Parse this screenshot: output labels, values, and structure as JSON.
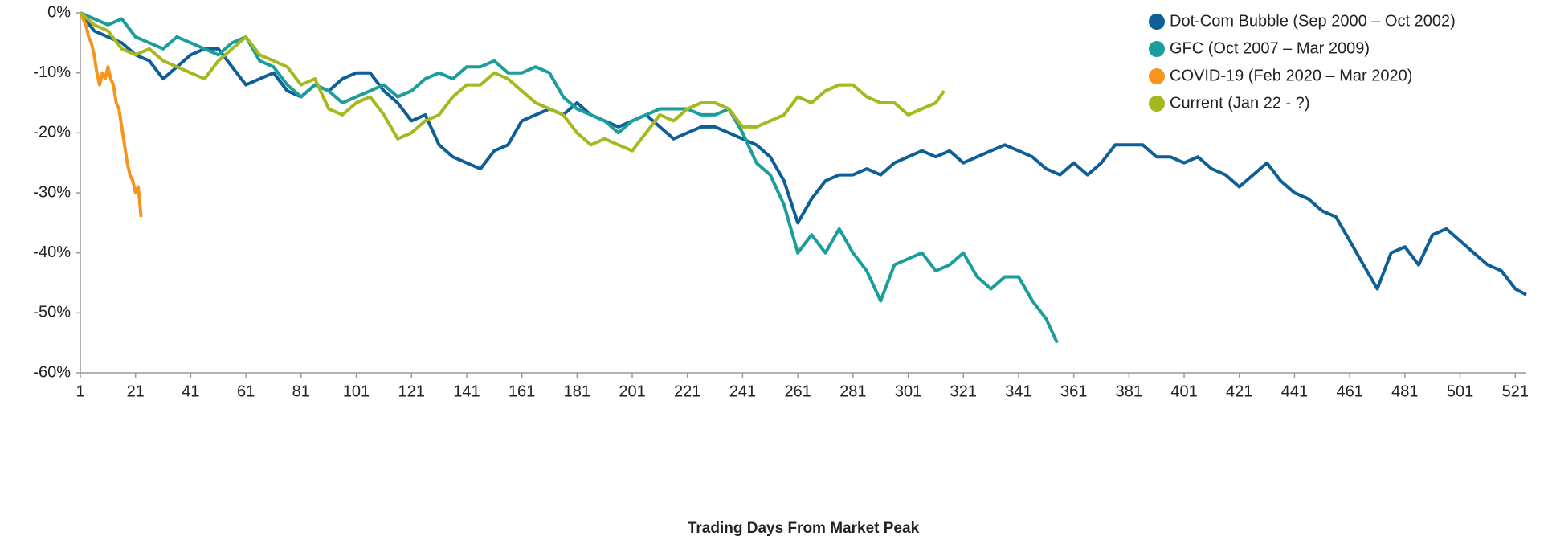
{
  "chart_data": {
    "type": "line",
    "xlabel": "Trading Days From Market Peak",
    "xlim": [
      1,
      525
    ],
    "ylim": [
      -60,
      0
    ],
    "xticks": [
      1,
      21,
      41,
      61,
      81,
      101,
      121,
      141,
      161,
      181,
      201,
      221,
      241,
      261,
      281,
      301,
      321,
      341,
      361,
      381,
      401,
      421,
      441,
      461,
      481,
      501,
      521
    ],
    "yticks": [
      {
        "value": 0,
        "label": "0%"
      },
      {
        "value": -10,
        "label": "-10%"
      },
      {
        "value": -20,
        "label": "-20%"
      },
      {
        "value": -30,
        "label": "-30%"
      },
      {
        "value": -40,
        "label": "-40%"
      },
      {
        "value": -50,
        "label": "-50%"
      },
      {
        "value": -60,
        "label": "-60%"
      }
    ],
    "legend": "top-right",
    "series": [
      {
        "name": "Dot-Com Bubble (Sep 2000 – Oct 2002)",
        "color": "#0e5f96",
        "x": [
          1,
          6,
          11,
          16,
          21,
          26,
          31,
          36,
          41,
          46,
          51,
          56,
          61,
          66,
          71,
          76,
          81,
          86,
          91,
          96,
          101,
          106,
          111,
          116,
          121,
          126,
          131,
          136,
          141,
          146,
          151,
          156,
          161,
          166,
          171,
          176,
          181,
          186,
          191,
          196,
          201,
          206,
          211,
          216,
          221,
          226,
          231,
          236,
          241,
          246,
          251,
          256,
          261,
          266,
          271,
          276,
          281,
          286,
          291,
          296,
          301,
          306,
          311,
          316,
          321,
          326,
          331,
          336,
          341,
          346,
          351,
          356,
          361,
          366,
          371,
          376,
          381,
          386,
          391,
          396,
          401,
          406,
          411,
          416,
          421,
          426,
          431,
          436,
          441,
          446,
          451,
          456,
          461,
          466,
          471,
          476,
          481,
          486,
          491,
          496,
          501,
          506,
          511,
          516,
          521,
          525
        ],
        "values": [
          0,
          -3,
          -4,
          -5,
          -7,
          -8,
          -11,
          -9,
          -7,
          -6,
          -6,
          -9,
          -12,
          -11,
          -10,
          -13,
          -14,
          -12,
          -13,
          -11,
          -10,
          -10,
          -13,
          -15,
          -18,
          -17,
          -22,
          -24,
          -25,
          -26,
          -23,
          -22,
          -18,
          -17,
          -16,
          -17,
          -15,
          -17,
          -18,
          -19,
          -18,
          -17,
          -19,
          -21,
          -20,
          -19,
          -19,
          -20,
          -21,
          -22,
          -24,
          -28,
          -35,
          -31,
          -28,
          -27,
          -27,
          -26,
          -27,
          -25,
          -24,
          -23,
          -24,
          -23,
          -25,
          -24,
          -23,
          -22,
          -23,
          -24,
          -26,
          -27,
          -25,
          -27,
          -25,
          -22,
          -22,
          -22,
          -24,
          -24,
          -25,
          -24,
          -26,
          -27,
          -29,
          -27,
          -25,
          -28,
          -30,
          -31,
          -33,
          -34,
          -38,
          -42,
          -46,
          -40,
          -39,
          -42,
          -37,
          -36,
          -38,
          -40,
          -42,
          -43,
          -46,
          -47
        ]
      },
      {
        "name": "GFC (Oct 2007 – Mar 2009)",
        "color": "#1b9e9b",
        "x": [
          1,
          6,
          11,
          16,
          21,
          26,
          31,
          36,
          41,
          46,
          51,
          56,
          61,
          66,
          71,
          76,
          81,
          86,
          91,
          96,
          101,
          106,
          111,
          116,
          121,
          126,
          131,
          136,
          141,
          146,
          151,
          156,
          161,
          166,
          171,
          176,
          181,
          186,
          191,
          196,
          201,
          206,
          211,
          216,
          221,
          226,
          231,
          236,
          241,
          246,
          251,
          256,
          261,
          266,
          271,
          276,
          281,
          286,
          291,
          296,
          301,
          306,
          311,
          316,
          321,
          326,
          331,
          336,
          341,
          346,
          351,
          355
        ],
        "values": [
          0,
          -1,
          -2,
          -1,
          -4,
          -5,
          -6,
          -4,
          -5,
          -6,
          -7,
          -5,
          -4,
          -8,
          -9,
          -12,
          -14,
          -12,
          -13,
          -15,
          -14,
          -13,
          -12,
          -14,
          -13,
          -11,
          -10,
          -11,
          -9,
          -9,
          -8,
          -10,
          -10,
          -9,
          -10,
          -14,
          -16,
          -17,
          -18,
          -20,
          -18,
          -17,
          -16,
          -16,
          -16,
          -17,
          -17,
          -16,
          -20,
          -25,
          -27,
          -32,
          -40,
          -37,
          -40,
          -36,
          -40,
          -43,
          -48,
          -42,
          -41,
          -40,
          -43,
          -42,
          -40,
          -44,
          -46,
          -44,
          -44,
          -48,
          -51,
          -55
        ]
      },
      {
        "name": "COVID-19 (Feb 2020 – Mar 2020)",
        "color": "#f7941d",
        "x": [
          1,
          2,
          3,
          4,
          5,
          6,
          7,
          8,
          9,
          10,
          11,
          12,
          13,
          14,
          15,
          16,
          17,
          18,
          19,
          20,
          21,
          22,
          23
        ],
        "values": [
          0,
          -1,
          -2,
          -4,
          -5,
          -7,
          -10,
          -12,
          -10,
          -11,
          -9,
          -11,
          -12,
          -15,
          -16,
          -19,
          -22,
          -25,
          -27,
          -28,
          -30,
          -29,
          -34
        ]
      },
      {
        "name": "Current (Jan 22 - ?)",
        "color": "#a5b81d",
        "x": [
          1,
          6,
          11,
          16,
          21,
          26,
          31,
          36,
          41,
          46,
          51,
          56,
          61,
          66,
          71,
          76,
          81,
          86,
          91,
          96,
          101,
          106,
          111,
          116,
          121,
          126,
          131,
          136,
          141,
          146,
          151,
          156,
          161,
          166,
          171,
          176,
          181,
          186,
          191,
          196,
          201,
          206,
          211,
          216,
          221,
          226,
          231,
          236,
          241,
          246,
          251,
          256,
          261,
          266,
          271,
          276,
          281,
          286,
          291,
          296,
          301,
          306,
          311,
          314
        ],
        "values": [
          0,
          -2,
          -3,
          -6,
          -7,
          -6,
          -8,
          -9,
          -10,
          -11,
          -8,
          -6,
          -4,
          -7,
          -8,
          -9,
          -12,
          -11,
          -16,
          -17,
          -15,
          -14,
          -17,
          -21,
          -20,
          -18,
          -17,
          -14,
          -12,
          -12,
          -10,
          -11,
          -13,
          -15,
          -16,
          -17,
          -20,
          -22,
          -21,
          -22,
          -23,
          -20,
          -17,
          -18,
          -16,
          -15,
          -15,
          -16,
          -19,
          -19,
          -18,
          -17,
          -14,
          -15,
          -13,
          -12,
          -12,
          -14,
          -15,
          -15,
          -17,
          -16,
          -15,
          -13
        ]
      }
    ]
  }
}
